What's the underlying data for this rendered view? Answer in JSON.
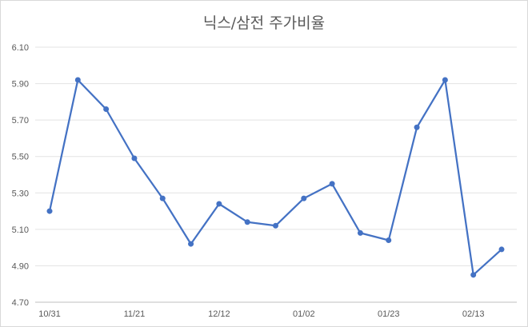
{
  "chart_data": {
    "type": "line",
    "title": "닉스/삼전 주가비율",
    "xlabel": "",
    "ylabel": "",
    "ylim": [
      4.7,
      6.1
    ],
    "yticks": [
      "6.10",
      "5.90",
      "5.70",
      "5.50",
      "5.30",
      "5.10",
      "4.90",
      "4.70"
    ],
    "ytick_values": [
      6.1,
      5.9,
      5.7,
      5.5,
      5.3,
      5.1,
      4.9,
      4.7
    ],
    "xtick_labels": [
      "10/31",
      "11/21",
      "12/12",
      "01/02",
      "01/23",
      "02/13"
    ],
    "xtick_index": [
      0,
      3,
      6,
      9,
      12,
      15
    ],
    "grid": true,
    "legend": "none",
    "color": "#4472c4",
    "series": [
      {
        "values": [
          5.2,
          5.92,
          5.76,
          5.49,
          5.27,
          5.02,
          5.24,
          5.14,
          5.12,
          5.27,
          5.35,
          5.08,
          5.04,
          5.66,
          5.92,
          4.85,
          4.99
        ]
      }
    ]
  }
}
